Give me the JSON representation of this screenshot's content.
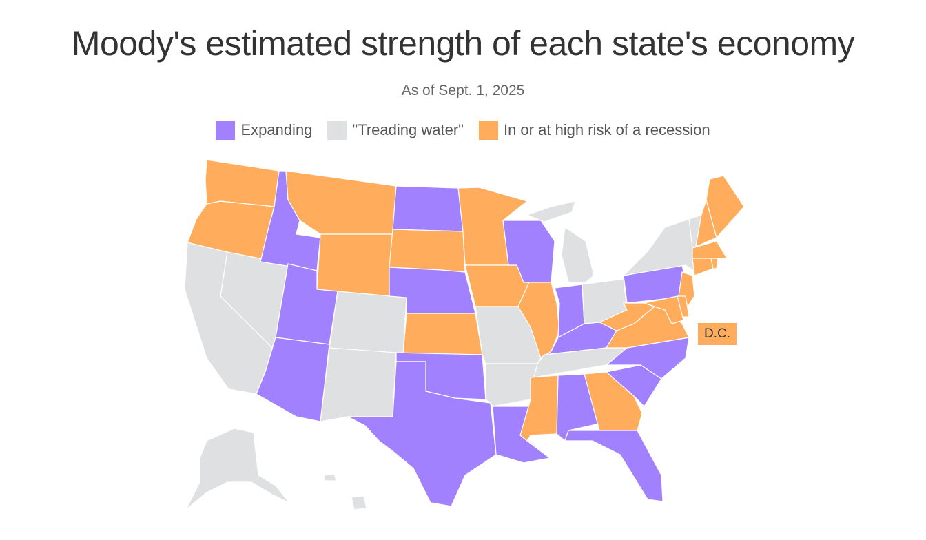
{
  "title": "Moody's estimated strength of each state's economy",
  "subtitle": "As of Sept. 1, 2025",
  "legend": [
    {
      "key": "expanding",
      "label": "Expanding",
      "color": "#a281ff"
    },
    {
      "key": "treading",
      "label": "\"Treading water\"",
      "color": "#dfe0e1"
    },
    {
      "key": "recession",
      "label": "In or at high risk of a recession",
      "color": "#ffad5c"
    }
  ],
  "dc_label": "D.C.",
  "states": {
    "WA": "recession",
    "OR": "recession",
    "CA": "treading",
    "NV": "treading",
    "ID": "expanding",
    "MT": "recession",
    "WY": "recession",
    "UT": "expanding",
    "AZ": "expanding",
    "CO": "treading",
    "NM": "treading",
    "ND": "expanding",
    "SD": "recession",
    "NE": "expanding",
    "KS": "recession",
    "OK": "expanding",
    "TX": "expanding",
    "MN": "recession",
    "IA": "recession",
    "MO": "treading",
    "AR": "treading",
    "LA": "expanding",
    "WI": "expanding",
    "IL": "recession",
    "MI": "treading",
    "IN": "expanding",
    "OH": "treading",
    "KY": "expanding",
    "TN": "treading",
    "MS": "recession",
    "AL": "expanding",
    "GA": "recession",
    "FL": "expanding",
    "SC": "expanding",
    "NC": "expanding",
    "VA": "recession",
    "WV": "recession",
    "PA": "expanding",
    "NY": "treading",
    "VT": "treading",
    "NH": "recession",
    "ME": "recession",
    "MA": "recession",
    "CT": "recession",
    "RI": "recession",
    "NJ": "recession",
    "DE": "recession",
    "MD": "recession",
    "DC": "recession",
    "AK": "treading",
    "HI": "treading"
  }
}
